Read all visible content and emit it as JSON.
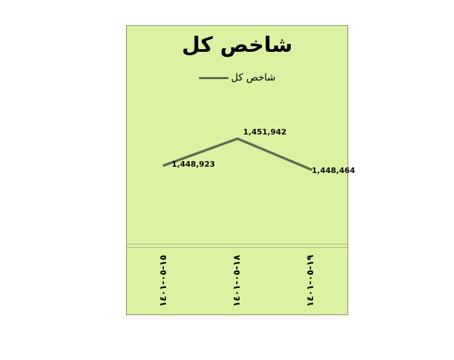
{
  "chart_data": {
    "type": "line",
    "title": "شاخص کل",
    "legend": [
      {
        "label": "شاخص کل"
      }
    ],
    "legend_position": "top-center",
    "categories": [
      "١٤٠١-٠٥-١٥",
      "١٤٠١-٠٥-١٨",
      "١٤٠١-٠٥-١٩"
    ],
    "series": [
      {
        "name": "شاخص کل",
        "values": [
          1448923,
          1451942,
          1448464
        ],
        "color": "#5e6b52"
      }
    ],
    "data_labels": [
      "1,448,923",
      "1,451,942",
      "1,448,464"
    ],
    "grid": false,
    "axes_hidden": true,
    "colors": {
      "plot_background": "#dbf2a2",
      "card_border": "#879069",
      "divider": "#adb88e",
      "text": "#000000",
      "page_background": "#ffffff"
    }
  }
}
